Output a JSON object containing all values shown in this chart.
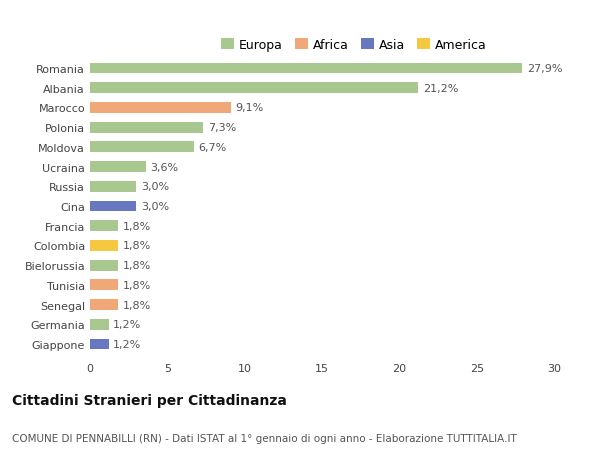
{
  "categories": [
    "Romania",
    "Albania",
    "Marocco",
    "Polonia",
    "Moldova",
    "Ucraina",
    "Russia",
    "Cina",
    "Francia",
    "Colombia",
    "Bielorussia",
    "Tunisia",
    "Senegal",
    "Germania",
    "Giappone"
  ],
  "values": [
    27.9,
    21.2,
    9.1,
    7.3,
    6.7,
    3.6,
    3.0,
    3.0,
    1.8,
    1.8,
    1.8,
    1.8,
    1.8,
    1.2,
    1.2
  ],
  "labels": [
    "27,9%",
    "21,2%",
    "9,1%",
    "7,3%",
    "6,7%",
    "3,6%",
    "3,0%",
    "3,0%",
    "1,8%",
    "1,8%",
    "1,8%",
    "1,8%",
    "1,8%",
    "1,2%",
    "1,2%"
  ],
  "continents": [
    "Europa",
    "Europa",
    "Africa",
    "Europa",
    "Europa",
    "Europa",
    "Europa",
    "Asia",
    "Europa",
    "America",
    "Europa",
    "Africa",
    "Africa",
    "Europa",
    "Asia"
  ],
  "continent_colors": {
    "Europa": "#a8c88f",
    "Africa": "#f0a878",
    "Asia": "#6878c0",
    "America": "#f5c842"
  },
  "legend_entries": [
    "Europa",
    "Africa",
    "Asia",
    "America"
  ],
  "legend_colors": [
    "#a8c88f",
    "#f0a878",
    "#6878c0",
    "#f5c842"
  ],
  "xlim": [
    0,
    31
  ],
  "xticks": [
    0,
    5,
    10,
    15,
    20,
    25,
    30
  ],
  "title": "Cittadini Stranieri per Cittadinanza",
  "subtitle": "COMUNE DI PENNABILLI (RN) - Dati ISTAT al 1° gennaio di ogni anno - Elaborazione TUTTITALIA.IT",
  "background_color": "#ffffff",
  "bar_height": 0.55,
  "label_fontsize": 8,
  "tick_fontsize": 8,
  "title_fontsize": 10,
  "subtitle_fontsize": 7.5
}
